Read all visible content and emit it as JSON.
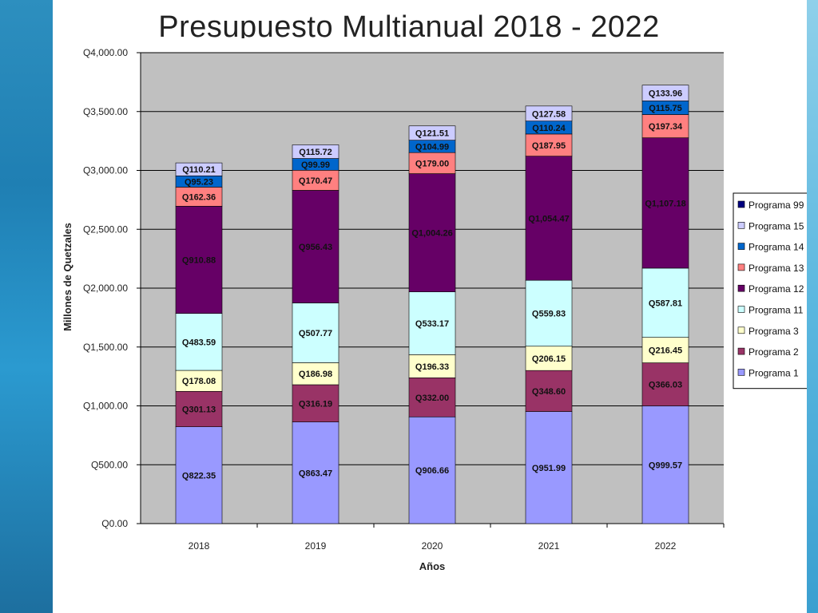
{
  "slide": {
    "title": "Presupuesto Multianual 2018 - 2022"
  },
  "chart_data": {
    "type": "bar",
    "stacked": true,
    "title": "Presupuesto Multianual 2018 - 2022",
    "xlabel": "Años",
    "ylabel": "Millones de Quetzales",
    "ylim": [
      0,
      4000
    ],
    "yticks": [
      "Q0.00",
      "Q500.00",
      "Q1,000.00",
      "Q1,500.00",
      "Q2,000.00",
      "Q2,500.00",
      "Q3,000.00",
      "Q3,500.00",
      "Q4,000.00"
    ],
    "categories": [
      "2018",
      "2019",
      "2020",
      "2021",
      "2022"
    ],
    "grid": true,
    "legend_position": "right",
    "legend_order": [
      "Programa 99",
      "Programa 15",
      "Programa 14",
      "Programa 13",
      "Programa 12",
      "Programa 11",
      "Programa 3",
      "Programa 2",
      "Programa 1"
    ],
    "series": [
      {
        "name": "Programa 1",
        "color": "#9999ff",
        "values": [
          822.35,
          863.47,
          906.66,
          951.99,
          999.57
        ],
        "labels": [
          "Q822.35",
          "Q863.47",
          "Q906.66",
          "Q951.99",
          "Q999.57"
        ]
      },
      {
        "name": "Programa 2",
        "color": "#993366",
        "values": [
          301.13,
          316.19,
          332.0,
          348.6,
          366.03
        ],
        "labels": [
          "Q301.13",
          "Q316.19",
          "Q332.00",
          "Q348.60",
          "Q366.03"
        ]
      },
      {
        "name": "Programa 3",
        "color": "#ffffcc",
        "values": [
          178.08,
          186.98,
          196.33,
          206.15,
          216.45
        ],
        "labels": [
          "Q178.08",
          "Q186.98",
          "Q196.33",
          "Q206.15",
          "Q216.45"
        ]
      },
      {
        "name": "Programa 11",
        "color": "#ccffff",
        "values": [
          483.59,
          507.77,
          533.17,
          559.83,
          587.81
        ],
        "labels": [
          "Q483.59",
          "Q507.77",
          "Q533.17",
          "Q559.83",
          "Q587.81"
        ]
      },
      {
        "name": "Programa 12",
        "color": "#660066",
        "values": [
          910.88,
          956.43,
          1004.26,
          1054.47,
          1107.18
        ],
        "labels": [
          "Q910.88",
          "Q956.43",
          "Q1,004.26",
          "Q1,054.47",
          "Q1,107.18"
        ]
      },
      {
        "name": "Programa 13",
        "color": "#ff8080",
        "values": [
          162.36,
          170.47,
          179.0,
          187.95,
          197.34
        ],
        "labels": [
          "Q162.36",
          "Q170.47",
          "Q179.00",
          "Q187.95",
          "Q197.34"
        ]
      },
      {
        "name": "Programa 14",
        "color": "#0066cc",
        "values": [
          95.23,
          99.99,
          104.99,
          110.24,
          115.75
        ],
        "labels": [
          "Q95.23",
          "Q99.99",
          "Q104.99",
          "Q110.24",
          "Q115.75"
        ]
      },
      {
        "name": "Programa 15",
        "color": "#ccccff",
        "values": [
          110.21,
          115.72,
          121.51,
          127.58,
          133.96
        ],
        "labels": [
          "Q110.21",
          "Q115.72",
          "Q121.51",
          "Q127.58",
          "Q133.96"
        ]
      },
      {
        "name": "Programa 99",
        "color": "#000080",
        "values": [
          0,
          0,
          0,
          0,
          0
        ],
        "labels": [
          "",
          "",
          "",
          "",
          ""
        ]
      }
    ],
    "colors": {
      "plot_background": "#c0c0c0",
      "gridline": "#000000"
    }
  }
}
